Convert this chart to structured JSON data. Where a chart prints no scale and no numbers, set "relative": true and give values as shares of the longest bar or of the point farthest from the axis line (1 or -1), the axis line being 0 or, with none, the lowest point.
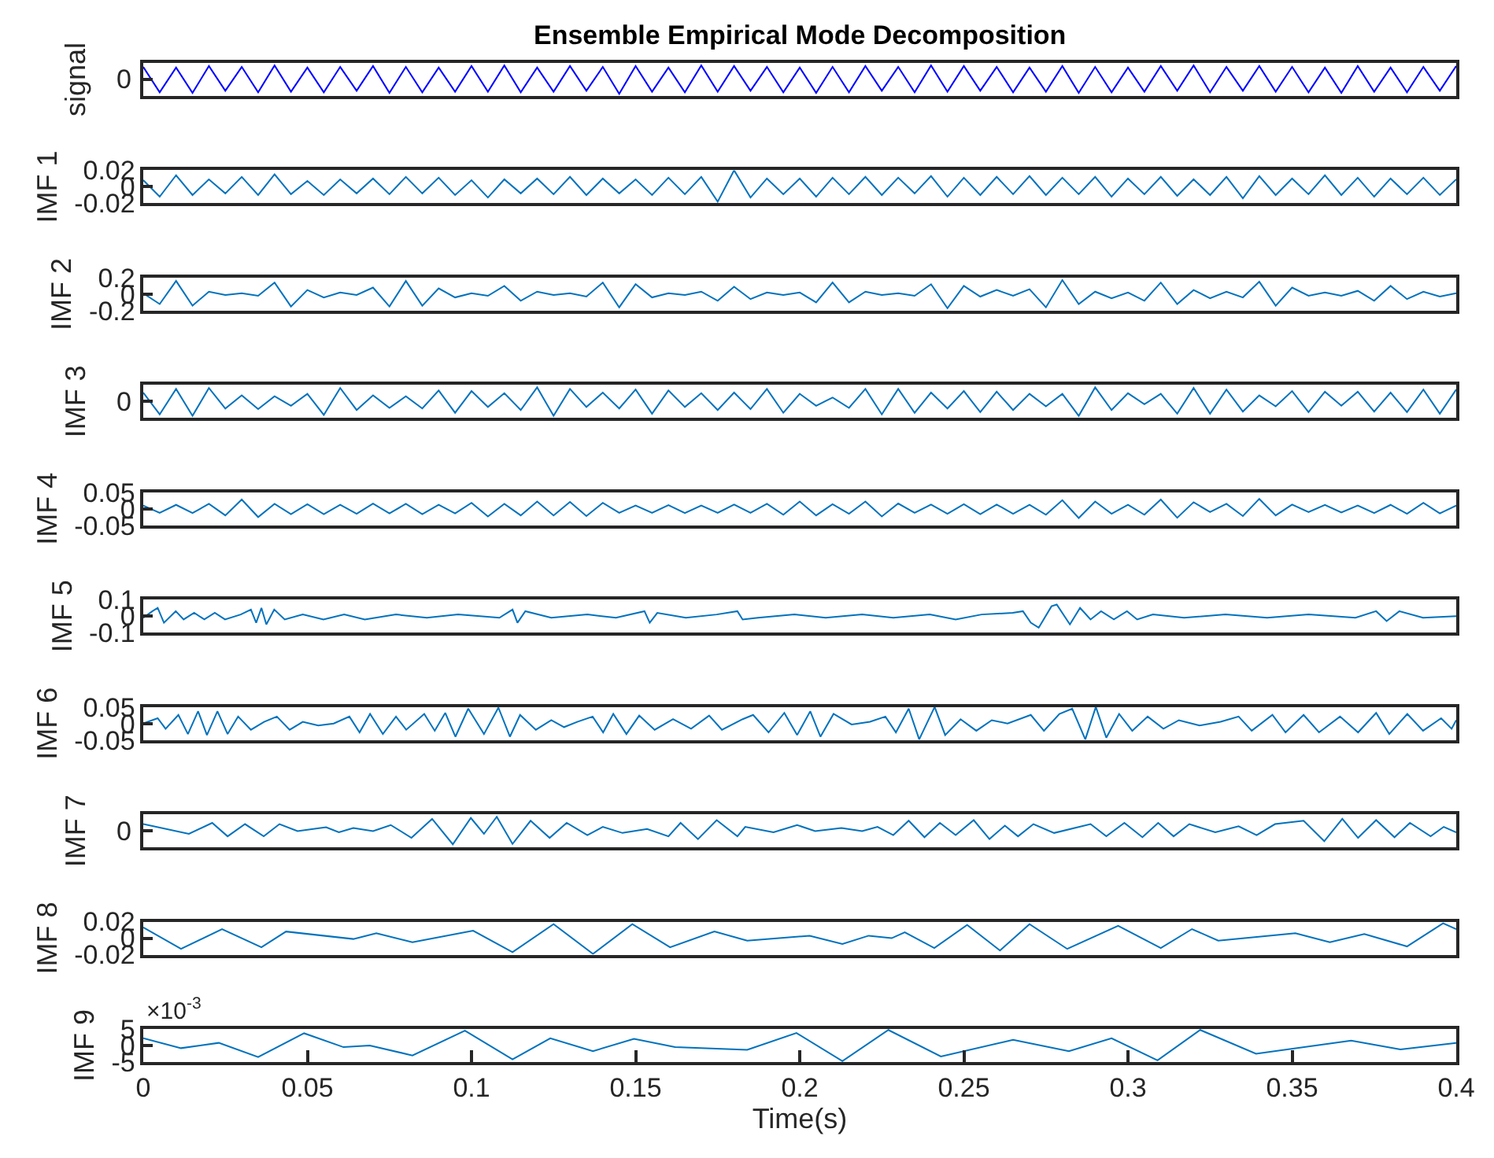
{
  "chart_data": [
    {
      "type": "line",
      "title": "Ensemble Empirical Mode Decomposition",
      "ylabel": "signal",
      "relative": true,
      "tick_labels": false,
      "annotations": [
        "0"
      ],
      "xlim": [
        0,
        0.4
      ],
      "x": [
        0,
        0.005,
        0.01,
        0.015,
        0.02,
        0.025,
        0.03,
        0.035,
        0.04,
        0.045,
        0.05,
        0.055,
        0.06,
        0.065,
        0.07,
        0.075,
        0.08,
        0.085,
        0.09,
        0.095,
        0.1,
        0.105,
        0.11,
        0.115,
        0.12,
        0.125,
        0.13,
        0.135,
        0.14,
        0.145,
        0.15,
        0.155,
        0.16,
        0.165,
        0.17,
        0.175,
        0.18,
        0.185,
        0.19,
        0.195,
        0.2,
        0.205,
        0.21,
        0.215,
        0.22,
        0.225,
        0.23,
        0.235,
        0.24,
        0.245,
        0.25,
        0.255,
        0.26,
        0.265,
        0.27,
        0.275,
        0.28,
        0.285,
        0.29,
        0.295,
        0.3,
        0.305,
        0.31,
        0.315,
        0.32,
        0.325,
        0.33,
        0.335,
        0.34,
        0.345,
        0.35,
        0.355,
        0.36,
        0.365,
        0.37,
        0.375,
        0.38,
        0.385,
        0.39,
        0.395,
        0.4
      ],
      "series": [
        {
          "color": "#0000ff",
          "values": [
            0.95,
            0.12,
            0.93,
            0.1,
            0.98,
            0.17,
            0.95,
            0.12,
            1,
            0.14,
            0.93,
            0.12,
            0.95,
            0.17,
            0.98,
            0.1,
            0.95,
            0.12,
            0.93,
            0.14,
            0.98,
            0.14,
            1,
            0.12,
            0.93,
            0.14,
            0.98,
            0.17,
            0.95,
            0.07,
            0.98,
            0.14,
            0.93,
            0.12,
            1,
            0.14,
            0.98,
            0.17,
            0.95,
            0.12,
            0.93,
            0.1,
            0.95,
            0.12,
            0.98,
            0.17,
            0.95,
            0.12,
            1,
            0.14,
            0.98,
            0.17,
            0.95,
            0.12,
            0.93,
            0.14,
            0.98,
            0.1,
            0.95,
            0.12,
            0.93,
            0.14,
            0.98,
            0.17,
            1,
            0.12,
            0.95,
            0.17,
            0.98,
            0.14,
            0.95,
            0.12,
            0.93,
            0.1,
            0.98,
            0.14,
            0.93,
            0.12,
            0.95,
            0.17,
            0.98
          ]
        }
      ]
    },
    {
      "type": "line",
      "ylabel": "IMF 1",
      "tick_labels": "y",
      "xlim": [
        0,
        0.4
      ],
      "ylim": [
        -0.02,
        0.02
      ],
      "yticks": [
        -0.02,
        0,
        0.02
      ],
      "x": [
        0,
        0.005,
        0.01,
        0.015,
        0.02,
        0.025,
        0.03,
        0.035,
        0.04,
        0.045,
        0.05,
        0.055,
        0.06,
        0.065,
        0.07,
        0.075,
        0.08,
        0.085,
        0.09,
        0.095,
        0.1,
        0.105,
        0.11,
        0.115,
        0.12,
        0.125,
        0.13,
        0.135,
        0.14,
        0.145,
        0.15,
        0.155,
        0.16,
        0.165,
        0.17,
        0.175,
        0.18,
        0.185,
        0.19,
        0.195,
        0.2,
        0.205,
        0.21,
        0.215,
        0.22,
        0.225,
        0.23,
        0.235,
        0.24,
        0.245,
        0.25,
        0.255,
        0.26,
        0.265,
        0.27,
        0.275,
        0.28,
        0.285,
        0.29,
        0.295,
        0.3,
        0.305,
        0.31,
        0.315,
        0.32,
        0.325,
        0.33,
        0.335,
        0.34,
        0.345,
        0.35,
        0.355,
        0.36,
        0.365,
        0.37,
        0.375,
        0.38,
        0.385,
        0.39,
        0.395,
        0.4
      ],
      "series": [
        {
          "color": "#0072bd",
          "values": [
            0.008,
            -0.012,
            0.014,
            -0.01,
            0.009,
            -0.008,
            0.012,
            -0.01,
            0.015,
            -0.009,
            0.007,
            -0.01,
            0.009,
            -0.008,
            0.01,
            -0.009,
            0.012,
            -0.008,
            0.011,
            -0.01,
            0.008,
            -0.013,
            0.009,
            -0.008,
            0.01,
            -0.009,
            0.012,
            -0.01,
            0.01,
            -0.008,
            0.009,
            -0.01,
            0.011,
            -0.009,
            0.012,
            -0.018,
            0.02,
            -0.013,
            0.01,
            -0.009,
            0.01,
            -0.012,
            0.011,
            -0.009,
            0.012,
            -0.01,
            0.011,
            -0.008,
            0.013,
            -0.012,
            0.011,
            -0.01,
            0.012,
            -0.009,
            0.013,
            -0.01,
            0.011,
            -0.009,
            0.012,
            -0.012,
            0.01,
            -0.009,
            0.012,
            -0.011,
            0.009,
            -0.01,
            0.012,
            -0.014,
            0.013,
            -0.01,
            0.01,
            -0.009,
            0.014,
            -0.01,
            0.011,
            -0.012,
            0.01,
            -0.009,
            0.011,
            -0.01,
            0.009
          ]
        }
      ]
    },
    {
      "type": "line",
      "ylabel": "IMF 2",
      "tick_labels": "y",
      "xlim": [
        0,
        0.4
      ],
      "ylim": [
        -0.2,
        0.2
      ],
      "yticks": [
        -0.2,
        0,
        0.2
      ],
      "x": [
        0,
        0.005,
        0.01,
        0.015,
        0.02,
        0.025,
        0.03,
        0.035,
        0.04,
        0.045,
        0.05,
        0.055,
        0.06,
        0.065,
        0.07,
        0.075,
        0.08,
        0.085,
        0.09,
        0.095,
        0.1,
        0.105,
        0.11,
        0.115,
        0.12,
        0.125,
        0.13,
        0.135,
        0.14,
        0.145,
        0.15,
        0.155,
        0.16,
        0.165,
        0.17,
        0.175,
        0.18,
        0.185,
        0.19,
        0.195,
        0.2,
        0.205,
        0.21,
        0.215,
        0.22,
        0.225,
        0.23,
        0.235,
        0.24,
        0.245,
        0.25,
        0.255,
        0.26,
        0.265,
        0.27,
        0.275,
        0.28,
        0.285,
        0.29,
        0.295,
        0.3,
        0.305,
        0.31,
        0.315,
        0.32,
        0.325,
        0.33,
        0.335,
        0.34,
        0.345,
        0.35,
        0.355,
        0.36,
        0.365,
        0.37,
        0.375,
        0.38,
        0.385,
        0.39,
        0.395,
        0.4
      ],
      "series": [
        {
          "color": "#0072bd",
          "values": [
            0.01,
            -0.12,
            0.16,
            -0.14,
            0.03,
            -0.01,
            0.01,
            -0.02,
            0.14,
            -0.15,
            0.05,
            -0.04,
            0.02,
            -0.01,
            0.08,
            -0.15,
            0.16,
            -0.14,
            0.07,
            -0.04,
            0.01,
            -0.02,
            0.1,
            -0.08,
            0.03,
            -0.01,
            0.01,
            -0.03,
            0.14,
            -0.16,
            0.12,
            -0.04,
            0.01,
            -0.01,
            0.03,
            -0.08,
            0.09,
            -0.06,
            0.02,
            -0.01,
            0.02,
            -0.1,
            0.14,
            -0.1,
            0.03,
            -0.01,
            0.01,
            -0.02,
            0.12,
            -0.17,
            0.1,
            -0.03,
            0.05,
            -0.02,
            0.06,
            -0.16,
            0.17,
            -0.12,
            0.03,
            -0.05,
            0.02,
            -0.08,
            0.14,
            -0.12,
            0.05,
            -0.05,
            0.03,
            -0.04,
            0.15,
            -0.14,
            0.08,
            -0.02,
            0.02,
            -0.02,
            0.04,
            -0.08,
            0.1,
            -0.06,
            0.03,
            -0.03,
            0.01
          ]
        }
      ]
    },
    {
      "type": "line",
      "ylabel": "IMF 3",
      "relative": true,
      "tick_labels": false,
      "annotations": [
        "0"
      ],
      "xlim": [
        0,
        0.4
      ],
      "x": [
        0,
        0.005,
        0.01,
        0.015,
        0.02,
        0.025,
        0.03,
        0.035,
        0.04,
        0.045,
        0.05,
        0.055,
        0.06,
        0.065,
        0.07,
        0.075,
        0.08,
        0.085,
        0.09,
        0.095,
        0.1,
        0.105,
        0.11,
        0.115,
        0.12,
        0.125,
        0.13,
        0.135,
        0.14,
        0.145,
        0.15,
        0.155,
        0.16,
        0.165,
        0.17,
        0.175,
        0.18,
        0.185,
        0.19,
        0.195,
        0.2,
        0.205,
        0.21,
        0.215,
        0.22,
        0.225,
        0.23,
        0.235,
        0.24,
        0.245,
        0.25,
        0.255,
        0.26,
        0.265,
        0.27,
        0.275,
        0.28,
        0.285,
        0.29,
        0.295,
        0.3,
        0.305,
        0.31,
        0.315,
        0.32,
        0.325,
        0.33,
        0.335,
        0.34,
        0.345,
        0.35,
        0.355,
        0.36,
        0.365,
        0.37,
        0.375,
        0.38,
        0.385,
        0.39,
        0.395,
        0.4
      ],
      "series": [
        {
          "color": "#0072bd",
          "values": [
            0.83,
            0.12,
            0.95,
            0.07,
            0.98,
            0.31,
            0.74,
            0.29,
            0.71,
            0.4,
            0.79,
            0.1,
            0.98,
            0.26,
            0.74,
            0.33,
            0.71,
            0.31,
            0.9,
            0.17,
            0.88,
            0.36,
            0.81,
            0.26,
            1,
            0.07,
            0.95,
            0.36,
            0.83,
            0.31,
            0.93,
            0.14,
            0.9,
            0.36,
            0.81,
            0.26,
            0.83,
            0.29,
            0.95,
            0.17,
            0.79,
            0.4,
            0.67,
            0.33,
            0.95,
            0.12,
            0.95,
            0.17,
            0.83,
            0.31,
            0.88,
            0.19,
            0.86,
            0.26,
            0.79,
            0.38,
            0.79,
            0.07,
            1,
            0.26,
            0.81,
            0.45,
            0.79,
            0.14,
            0.98,
            0.14,
            0.93,
            0.21,
            0.74,
            0.38,
            0.88,
            0.19,
            0.86,
            0.4,
            0.86,
            0.21,
            0.83,
            0.19,
            0.93,
            0.14,
            0.93
          ]
        }
      ]
    },
    {
      "type": "line",
      "ylabel": "IMF 4",
      "tick_labels": "y",
      "xlim": [
        0,
        0.4
      ],
      "ylim": [
        -0.05,
        0.05
      ],
      "yticks": [
        -0.05,
        0,
        0.05
      ],
      "x": [
        0,
        0.005,
        0.01,
        0.015,
        0.02,
        0.025,
        0.03,
        0.035,
        0.04,
        0.045,
        0.05,
        0.055,
        0.06,
        0.065,
        0.07,
        0.075,
        0.08,
        0.085,
        0.09,
        0.095,
        0.1,
        0.105,
        0.11,
        0.115,
        0.12,
        0.125,
        0.13,
        0.135,
        0.14,
        0.145,
        0.15,
        0.155,
        0.16,
        0.165,
        0.17,
        0.175,
        0.18,
        0.185,
        0.19,
        0.195,
        0.2,
        0.205,
        0.21,
        0.215,
        0.22,
        0.225,
        0.23,
        0.235,
        0.24,
        0.245,
        0.25,
        0.255,
        0.26,
        0.265,
        0.27,
        0.275,
        0.28,
        0.285,
        0.29,
        0.295,
        0.3,
        0.305,
        0.31,
        0.315,
        0.32,
        0.325,
        0.33,
        0.335,
        0.34,
        0.345,
        0.35,
        0.355,
        0.36,
        0.365,
        0.37,
        0.375,
        0.38,
        0.385,
        0.39,
        0.395,
        0.4
      ],
      "series": [
        {
          "color": "#0072bd",
          "values": [
            0.01,
            -0.012,
            0.012,
            -0.013,
            0.015,
            -0.02,
            0.028,
            -0.025,
            0.015,
            -0.016,
            0.014,
            -0.016,
            0.012,
            -0.015,
            0.016,
            -0.014,
            0.015,
            -0.016,
            0.012,
            -0.014,
            0.018,
            -0.023,
            0.015,
            -0.02,
            0.022,
            -0.02,
            0.021,
            -0.022,
            0.018,
            -0.012,
            0.01,
            -0.012,
            0.011,
            -0.013,
            0.01,
            -0.012,
            0.013,
            -0.012,
            0.015,
            -0.018,
            0.022,
            -0.02,
            0.014,
            -0.015,
            0.022,
            -0.023,
            0.016,
            -0.012,
            0.013,
            -0.015,
            0.014,
            -0.016,
            0.013,
            -0.015,
            0.012,
            -0.018,
            0.026,
            -0.028,
            0.022,
            -0.015,
            0.012,
            -0.018,
            0.028,
            -0.027,
            0.02,
            -0.01,
            0.015,
            -0.022,
            0.03,
            -0.02,
            0.013,
            -0.01,
            0.012,
            -0.011,
            0.01,
            -0.013,
            0.012,
            -0.015,
            0.018,
            -0.014,
            0.01
          ]
        }
      ]
    },
    {
      "type": "line",
      "ylabel": "IMF 5",
      "tick_labels": "y",
      "xlim": [
        0,
        0.4
      ],
      "ylim": [
        -0.1,
        0.1
      ],
      "yticks": [
        -0.1,
        0,
        0.1
      ],
      "x": [
        0,
        0.0028,
        0.0044,
        0.0063,
        0.0099,
        0.0123,
        0.0155,
        0.0186,
        0.0218,
        0.0249,
        0.0297,
        0.0328,
        0.0344,
        0.036,
        0.0375,
        0.0399,
        0.0431,
        0.0486,
        0.0549,
        0.0612,
        0.0675,
        0.077,
        0.0864,
        0.0959,
        0.1085,
        0.1125,
        0.114,
        0.1164,
        0.1243,
        0.1353,
        0.144,
        0.1527,
        0.1543,
        0.1566,
        0.1653,
        0.1747,
        0.181,
        0.1826,
        0.1873,
        0.1984,
        0.2079,
        0.219,
        0.2285,
        0.2396,
        0.2475,
        0.2554,
        0.2649,
        0.268,
        0.2704,
        0.2728,
        0.2767,
        0.2783,
        0.2823,
        0.2854,
        0.2886,
        0.2918,
        0.2957,
        0.2997,
        0.3028,
        0.3076,
        0.3171,
        0.3297,
        0.3424,
        0.355,
        0.3693,
        0.3756,
        0.3788,
        0.3827,
        0.3899,
        0.4
      ],
      "series": [
        {
          "color": "#0072bd",
          "values": [
            -0.01,
            0.03,
            0.05,
            -0.04,
            0.03,
            -0.02,
            0.02,
            -0.02,
            0.02,
            -0.02,
            0.01,
            0.04,
            -0.04,
            0.05,
            -0.05,
            0.04,
            -0.02,
            0.01,
            -0.02,
            0.01,
            -0.02,
            0.01,
            -0.01,
            0.01,
            -0.01,
            0.04,
            -0.04,
            0.03,
            -0.01,
            0.01,
            -0.01,
            0.03,
            -0.04,
            0.02,
            -0.01,
            0.01,
            0.03,
            -0.02,
            -0.01,
            0.01,
            -0.01,
            0.01,
            -0.01,
            0.01,
            -0.02,
            0.01,
            0.02,
            0.03,
            -0.04,
            -0.07,
            0.06,
            0.07,
            -0.05,
            0.05,
            -0.02,
            0.03,
            -0.02,
            0.03,
            -0.02,
            0.01,
            -0.01,
            0.01,
            -0.01,
            0.01,
            -0.01,
            0.03,
            -0.03,
            0.03,
            -0.01,
            0
          ]
        }
      ]
    },
    {
      "type": "line",
      "ylabel": "IMF 6",
      "tick_labels": "y",
      "xlim": [
        0,
        0.4
      ],
      "ylim": [
        -0.05,
        0.05
      ],
      "yticks": [
        -0.05,
        0,
        0.05
      ],
      "x": [
        0,
        0.0044,
        0.0068,
        0.0107,
        0.0136,
        0.0167,
        0.0194,
        0.0226,
        0.0257,
        0.0289,
        0.0328,
        0.0368,
        0.0407,
        0.0446,
        0.0486,
        0.0533,
        0.058,
        0.0628,
        0.0659,
        0.0691,
        0.073,
        0.077,
        0.0801,
        0.0856,
        0.0888,
        0.092,
        0.0951,
        0.099,
        0.1038,
        0.1082,
        0.1117,
        0.1148,
        0.1196,
        0.1243,
        0.1282,
        0.1322,
        0.1369,
        0.1401,
        0.1432,
        0.1472,
        0.1511,
        0.1558,
        0.1614,
        0.1669,
        0.1724,
        0.1763,
        0.1826,
        0.1858,
        0.1905,
        0.1953,
        0.1992,
        0.2032,
        0.2063,
        0.2103,
        0.2158,
        0.2214,
        0.2261,
        0.2293,
        0.2332,
        0.2364,
        0.2411,
        0.2443,
        0.249,
        0.2538,
        0.2585,
        0.2633,
        0.2704,
        0.2744,
        0.2791,
        0.283,
        0.287,
        0.2902,
        0.2934,
        0.2973,
        0.3013,
        0.306,
        0.3108,
        0.3155,
        0.3218,
        0.3282,
        0.3337,
        0.3377,
        0.344,
        0.348,
        0.3535,
        0.3582,
        0.3646,
        0.3701,
        0.3756,
        0.3796,
        0.3851,
        0.3899,
        0.3954,
        0.3986,
        0.4
      ],
      "series": [
        {
          "color": "#0072bd",
          "values": [
            0,
            0.016,
            -0.016,
            0.026,
            -0.032,
            0.037,
            -0.035,
            0.037,
            -0.032,
            0.021,
            -0.019,
            0.005,
            0.021,
            -0.019,
            0.005,
            -0.006,
            0,
            0.021,
            -0.027,
            0.029,
            -0.032,
            0.021,
            -0.019,
            0.029,
            -0.022,
            0.032,
            -0.04,
            0.045,
            -0.032,
            0.048,
            -0.04,
            0.026,
            -0.019,
            0.01,
            -0.011,
            0.005,
            0.021,
            -0.027,
            0.029,
            -0.032,
            0.024,
            -0.019,
            0.013,
            -0.016,
            0.024,
            -0.019,
            0.013,
            0.026,
            -0.027,
            0.032,
            -0.035,
            0.037,
            -0.04,
            0.029,
            -0.003,
            0.005,
            0.021,
            -0.027,
            0.045,
            -0.048,
            0.05,
            -0.035,
            0.013,
            -0.022,
            0.01,
            0,
            0.026,
            -0.022,
            0.029,
            0.045,
            -0.048,
            0.05,
            -0.043,
            0.029,
            -0.022,
            0.021,
            -0.016,
            0.01,
            -0.006,
            0.005,
            0.021,
            -0.022,
            0.026,
            -0.027,
            0.026,
            -0.027,
            0.021,
            -0.027,
            0.032,
            -0.032,
            0.029,
            -0.022,
            0.016,
            -0.016,
            0.01
          ]
        }
      ]
    },
    {
      "type": "line",
      "ylabel": "IMF 7",
      "relative": true,
      "tick_labels": false,
      "annotations": [
        "0"
      ],
      "xlim": [
        0,
        0.4
      ],
      "x": [
        0,
        0.0139,
        0.021,
        0.0257,
        0.031,
        0.0367,
        0.0415,
        0.047,
        0.0557,
        0.0596,
        0.064,
        0.07,
        0.0754,
        0.0817,
        0.088,
        0.0943,
        0.0998,
        0.1038,
        0.1077,
        0.1125,
        0.118,
        0.1238,
        0.129,
        0.1353,
        0.14,
        0.146,
        0.1535,
        0.16,
        0.1637,
        0.169,
        0.1747,
        0.181,
        0.1834,
        0.192,
        0.1992,
        0.2047,
        0.2127,
        0.219,
        0.2237,
        0.2285,
        0.2332,
        0.238,
        0.2427,
        0.2475,
        0.253,
        0.2578,
        0.2625,
        0.2665,
        0.2712,
        0.2775,
        0.2886,
        0.2934,
        0.2989,
        0.3044,
        0.3092,
        0.3139,
        0.3187,
        0.3266,
        0.3337,
        0.3392,
        0.3448,
        0.3535,
        0.3598,
        0.3653,
        0.3701,
        0.3756,
        0.3812,
        0.3859,
        0.3922,
        0.3962,
        0.4
      ],
      "series": [
        {
          "color": "#0072bd",
          "values": [
            0.76,
            0.44,
            0.8,
            0.36,
            0.76,
            0.36,
            0.76,
            0.53,
            0.66,
            0.49,
            0.63,
            0.53,
            0.73,
            0.31,
            0.93,
            0.1,
            0.96,
            0.44,
            1,
            0.11,
            0.87,
            0.31,
            0.8,
            0.4,
            0.67,
            0.47,
            0.6,
            0.36,
            0.8,
            0.27,
            0.89,
            0.36,
            0.67,
            0.49,
            0.73,
            0.53,
            0.63,
            0.53,
            0.67,
            0.4,
            0.87,
            0.33,
            0.8,
            0.4,
            0.89,
            0.27,
            0.71,
            0.36,
            0.76,
            0.47,
            0.76,
            0.36,
            0.8,
            0.33,
            0.8,
            0.36,
            0.76,
            0.49,
            0.69,
            0.4,
            0.76,
            0.87,
            0.2,
            0.93,
            0.31,
            0.89,
            0.33,
            0.8,
            0.36,
            0.67,
            0.49
          ]
        }
      ]
    },
    {
      "type": "line",
      "ylabel": "IMF 8",
      "tick_labels": "y",
      "xlim": [
        0,
        0.4
      ],
      "ylim": [
        -0.02,
        0.02
      ],
      "yticks": [
        -0.02,
        0,
        0.02
      ],
      "x": [
        0,
        0.0115,
        0.024,
        0.036,
        0.0435,
        0.064,
        0.071,
        0.082,
        0.1005,
        0.1125,
        0.125,
        0.137,
        0.149,
        0.1605,
        0.174,
        0.184,
        0.203,
        0.213,
        0.221,
        0.228,
        0.232,
        0.241,
        0.251,
        0.261,
        0.27,
        0.2815,
        0.297,
        0.31,
        0.3195,
        0.3275,
        0.351,
        0.3615,
        0.372,
        0.385,
        0.396,
        0.4
      ],
      "series": [
        {
          "color": "#0072bd",
          "values": [
            0.013,
            -0.013,
            0.011,
            -0.011,
            0.008,
            -0.001,
            0.006,
            -0.005,
            0.009,
            -0.017,
            0.017,
            -0.019,
            0.017,
            -0.011,
            0.008,
            -0.003,
            0.003,
            -0.007,
            0.003,
            0,
            0.007,
            -0.012,
            0.016,
            -0.015,
            0.017,
            -0.013,
            0.015,
            -0.012,
            0.011,
            -0.003,
            0.006,
            -0.005,
            0.005,
            -0.01,
            0.018,
            0.011
          ]
        }
      ]
    },
    {
      "type": "line",
      "ylabel": "IMF 9",
      "xlabel": "Time(s)",
      "annotations": [
        "×10$^{-3}$"
      ],
      "xlim": [
        0,
        0.4
      ],
      "xticks": [
        0,
        0.05,
        0.1,
        0.15,
        0.2,
        0.25,
        0.3,
        0.35,
        0.4
      ],
      "ylim": [
        -5,
        5
      ],
      "yticks": [
        -5,
        0,
        5
      ],
      "x": [
        0,
        0.0115,
        0.023,
        0.035,
        0.049,
        0.061,
        0.069,
        0.082,
        0.098,
        0.1125,
        0.124,
        0.137,
        0.1495,
        0.162,
        0.184,
        0.199,
        0.213,
        0.227,
        0.243,
        0.265,
        0.282,
        0.295,
        0.309,
        0.322,
        0.339,
        0.368,
        0.383,
        0.4
      ],
      "series": [
        {
          "color": "#0072bd",
          "values": [
            2.2,
            -0.8,
            0.8,
            -3.5,
            3.7,
            -0.5,
            0,
            -3,
            4.5,
            -4.2,
            2.2,
            -1.7,
            2,
            -0.5,
            -1.3,
            3.8,
            -4.7,
            4.7,
            -3.3,
            1.7,
            -1.7,
            2.2,
            -4.5,
            4.7,
            -2.5,
            1.5,
            -1.2,
            0.8
          ]
        }
      ]
    }
  ]
}
